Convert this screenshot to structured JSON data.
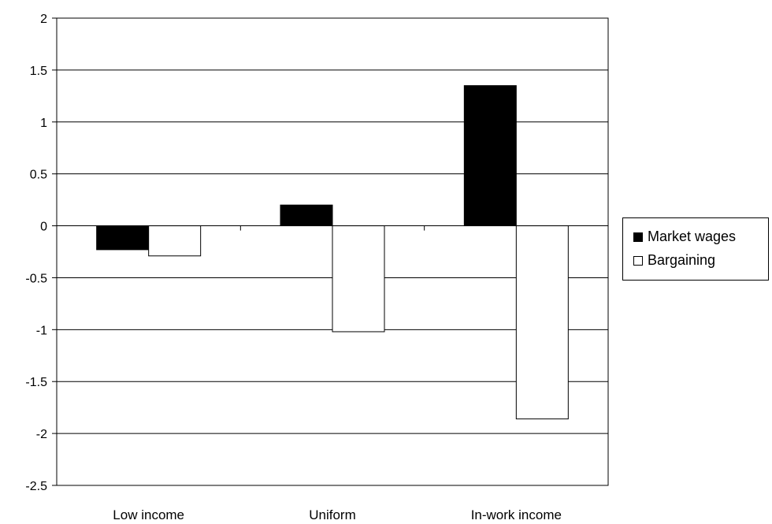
{
  "chart_data": {
    "type": "bar",
    "categories": [
      "Low income",
      "Uniform",
      "In-work income"
    ],
    "series": [
      {
        "name": "Market wages",
        "values": [
          -0.23,
          0.2,
          1.35
        ],
        "color": "#000000"
      },
      {
        "name": "Bargaining",
        "values": [
          -0.29,
          -1.02,
          -1.86
        ],
        "color": "#ffffff"
      }
    ],
    "ylim": [
      -2.5,
      2
    ],
    "yticks": [
      "2",
      "1.5",
      "1",
      "0.5",
      "0",
      "-0.5",
      "-1",
      "-1.5",
      "-2",
      "-2.5"
    ],
    "ytick_values": [
      2,
      1.5,
      1,
      0.5,
      0,
      -0.5,
      -1,
      -1.5,
      -2,
      -2.5
    ],
    "grid": true,
    "legend_position": "right",
    "title": "",
    "xlabel": "",
    "ylabel": ""
  }
}
